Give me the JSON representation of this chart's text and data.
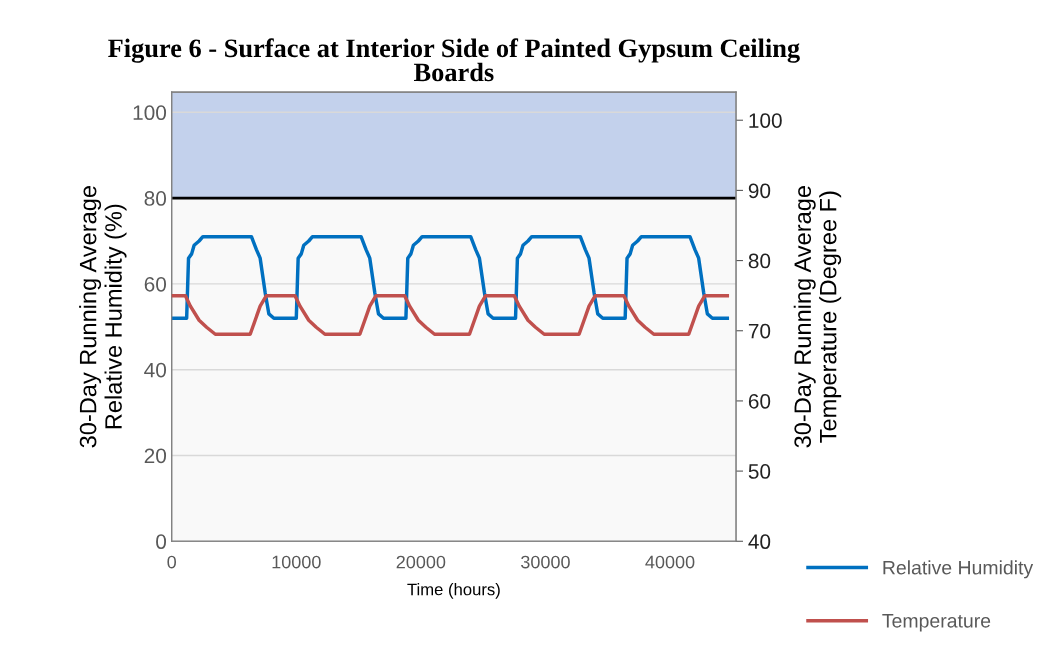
{
  "chart_data": {
    "type": "line",
    "title": "Figure 6 - Surface at Interior Side of Painted Gypsum Ceiling Boards",
    "xlabel": "Time (hours)",
    "ylabel": "30-Day Running Average Relative Humidity (%)",
    "y2label": "30-Day Running Average Temperature (Degree F)",
    "xlim": [
      0,
      45300
    ],
    "xticks": [
      0,
      10000,
      20000,
      30000,
      40000
    ],
    "ylim": [
      0,
      104.7
    ],
    "yticks": [
      0,
      20,
      40,
      60,
      80,
      100
    ],
    "y2lim": [
      40,
      104
    ],
    "y2ticks": [
      40,
      50,
      60,
      70,
      80,
      90,
      100
    ],
    "grid": "y",
    "legend": "bottom right",
    "bands": [
      {
        "axis": "y",
        "from": 80,
        "to": 104.7,
        "color": "#c3d1ec"
      }
    ],
    "ref_lines": [
      {
        "axis": "y",
        "value": 80,
        "color": "#000000"
      }
    ],
    "series": [
      {
        "name": "Relative Humidity",
        "color": "#0070c0",
        "x": [
          0,
          1200,
          1350,
          1600,
          1800,
          2200,
          2500,
          6400,
          6800,
          7100,
          7500,
          7800,
          8200,
          10000,
          10150,
          10400,
          10600,
          11000,
          11300,
          15200,
          15600,
          15900,
          16300,
          16600,
          17000,
          18800,
          18950,
          19200,
          19400,
          19800,
          20100,
          24000,
          24400,
          24700,
          25100,
          25400,
          25800,
          27600,
          27750,
          28000,
          28200,
          28600,
          28900,
          32800,
          33200,
          33500,
          33900,
          34200,
          34600,
          36400,
          36550,
          36800,
          37000,
          37400,
          37700,
          41600,
          42000,
          42300,
          42700,
          43000,
          43400,
          44600
        ],
        "values": [
          52,
          52,
          66,
          67,
          69,
          70,
          71,
          71,
          68,
          66,
          58,
          53,
          52,
          52,
          66,
          67,
          69,
          70,
          71,
          71,
          68,
          66,
          58,
          53,
          52,
          52,
          66,
          67,
          69,
          70,
          71,
          71,
          68,
          66,
          58,
          53,
          52,
          52,
          66,
          67,
          69,
          70,
          71,
          71,
          68,
          66,
          58,
          53,
          52,
          52,
          66,
          67,
          69,
          70,
          71,
          71,
          68,
          66,
          58,
          53,
          52,
          52
        ]
      },
      {
        "name": "Temperature",
        "color": "#c0504d",
        "axis": "y2",
        "x": [
          0,
          1100,
          1500,
          2200,
          2800,
          3500,
          6300,
          6700,
          7100,
          7600,
          9900,
          10300,
          11000,
          11600,
          12300,
          15100,
          15500,
          15900,
          16400,
          18700,
          19100,
          19800,
          20400,
          21100,
          23900,
          24300,
          24700,
          25200,
          27500,
          27900,
          28600,
          29200,
          29900,
          32700,
          33100,
          33500,
          34000,
          36300,
          36700,
          37400,
          38000,
          38700,
          41500,
          41900,
          42300,
          42800,
          44600
        ],
        "values": [
          75,
          75,
          73.5,
          71.5,
          70.5,
          69.5,
          69.5,
          71.5,
          73.5,
          75,
          75,
          73.5,
          71.5,
          70.5,
          69.5,
          69.5,
          71.5,
          73.5,
          75,
          75,
          73.5,
          71.5,
          70.5,
          69.5,
          69.5,
          71.5,
          73.5,
          75,
          75,
          73.5,
          71.5,
          70.5,
          69.5,
          69.5,
          71.5,
          73.5,
          75,
          75,
          73.5,
          71.5,
          70.5,
          69.5,
          69.5,
          71.5,
          73.5,
          75,
          75
        ]
      }
    ]
  }
}
